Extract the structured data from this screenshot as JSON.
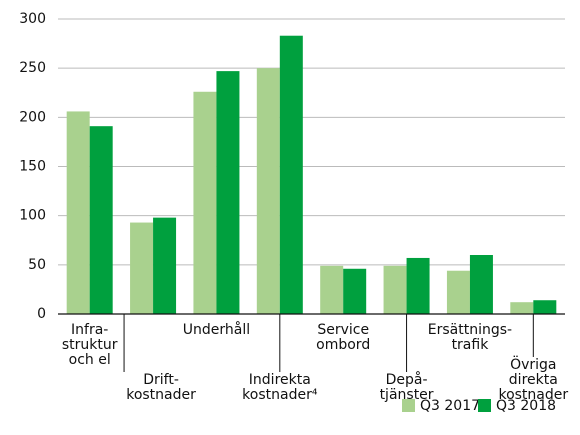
{
  "chart_data": {
    "type": "bar",
    "categories": [
      [
        "Infra-",
        "struktur",
        "och el"
      ],
      [
        "Drift-",
        "kostnader"
      ],
      [
        "Underhåll"
      ],
      [
        "Indirekta",
        "kostnader⁴"
      ],
      [
        "Service",
        "ombord"
      ],
      [
        "Depå-",
        "tjänster"
      ],
      [
        "Ersättnings-",
        "trafik"
      ],
      [
        "Övriga",
        "direkta",
        "kostnader"
      ]
    ],
    "series": [
      {
        "name": "Q3 2017",
        "color": "#a9d18e",
        "values": [
          206,
          93,
          226,
          250,
          49,
          49,
          44,
          12
        ]
      },
      {
        "name": "Q3 2018",
        "color": "#00a03e",
        "values": [
          191,
          98,
          247,
          283,
          46,
          57,
          60,
          14
        ]
      }
    ],
    "ylim": [
      0,
      300
    ],
    "yticks": [
      0,
      50,
      100,
      150,
      200,
      250,
      300
    ],
    "grid": true,
    "legend": "bottom-right"
  }
}
